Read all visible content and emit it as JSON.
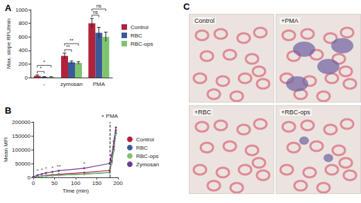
{
  "chart_data": [
    {
      "type": "bar",
      "title": "A",
      "y_label": "Max. slope RFU/min",
      "categories": [
        "-",
        "zymosan",
        "PMA"
      ],
      "series": [
        {
          "name": "Control",
          "color": "#b2223b",
          "values": [
            25,
            320,
            800
          ],
          "errors": [
            15,
            40,
            70
          ]
        },
        {
          "name": "RBC",
          "color": "#3b5998",
          "values": [
            10,
            225,
            660
          ],
          "errors": [
            5,
            20,
            80
          ]
        },
        {
          "name": "RBC-ops",
          "color": "#7ec46f",
          "values": [
            8,
            215,
            600
          ],
          "errors": [
            5,
            20,
            70
          ]
        }
      ],
      "ylim": [
        0,
        1000
      ],
      "yticks": [
        0,
        200,
        400,
        600,
        800,
        1000
      ],
      "grid": false,
      "legend": "right",
      "annotations": [
        {
          "category": "-",
          "between": [
            "Control",
            "RBC"
          ],
          "text": "*"
        },
        {
          "category": "-",
          "between": [
            "Control",
            "RBC-ops"
          ],
          "text": "*"
        },
        {
          "category": "zymosan",
          "between": [
            "Control",
            "RBC"
          ],
          "text": "**"
        },
        {
          "category": "zymosan",
          "between": [
            "Control",
            "RBC-ops"
          ],
          "text": "**"
        },
        {
          "category": "PMA",
          "between": [
            "Control",
            "RBC"
          ],
          "text": "ns"
        },
        {
          "category": "PMA",
          "between": [
            "Control",
            "RBC-ops"
          ],
          "text": "ns"
        }
      ]
    },
    {
      "type": "line",
      "title": "B",
      "x_label": "Time (min)",
      "y_label": "Mean MFI",
      "x": [
        0,
        10,
        20,
        30,
        45,
        60,
        120,
        180,
        185,
        190,
        195
      ],
      "series": [
        {
          "name": "Control",
          "color": "#b2223b",
          "values": [
            1000,
            3000,
            5000,
            7000,
            9000,
            11000,
            17000,
            25000,
            60000,
            110000,
            170000
          ]
        },
        {
          "name": "RBC",
          "color": "#3b5998",
          "values": [
            1000,
            2500,
            4000,
            5000,
            6500,
            8000,
            12000,
            18000,
            55000,
            100000,
            160000
          ]
        },
        {
          "name": "RBC-ops",
          "color": "#7ec46f",
          "values": [
            1000,
            2500,
            4000,
            5000,
            6000,
            7500,
            11000,
            17000,
            50000,
            95000,
            155000
          ]
        },
        {
          "name": "Zymosan",
          "color": "#6b3b8f",
          "values": [
            2000,
            8000,
            12000,
            16000,
            20000,
            24000,
            33000,
            50000,
            80000,
            130000,
            180000
          ]
        }
      ],
      "xlim": [
        0,
        200
      ],
      "xticks": [
        0,
        50,
        100,
        150,
        200
      ],
      "ylim": [
        0,
        200000
      ],
      "yticks": [
        0,
        50000,
        100000,
        150000,
        200000
      ],
      "grid": false,
      "legend": "right",
      "marker": "circle",
      "marker_line": {
        "x": 180,
        "text": "+ PMA",
        "line_style": "dashed"
      },
      "annotations": [
        {
          "x": 10,
          "series": "Zymosan",
          "text": "*"
        },
        {
          "x": 20,
          "series": "Zymosan",
          "text": "*"
        },
        {
          "x": 30,
          "series": "Zymosan",
          "text": "*"
        },
        {
          "x": 45,
          "series": "Zymosan",
          "text": "*"
        },
        {
          "x": 60,
          "series": "Zymosan",
          "text": "**"
        },
        {
          "x": 120,
          "series": "Zymosan",
          "text": "*"
        }
      ]
    }
  ],
  "images": {
    "title": "C",
    "labels": [
      "Control",
      "+PMA",
      "+RBC",
      "+RBC-ops"
    ]
  }
}
